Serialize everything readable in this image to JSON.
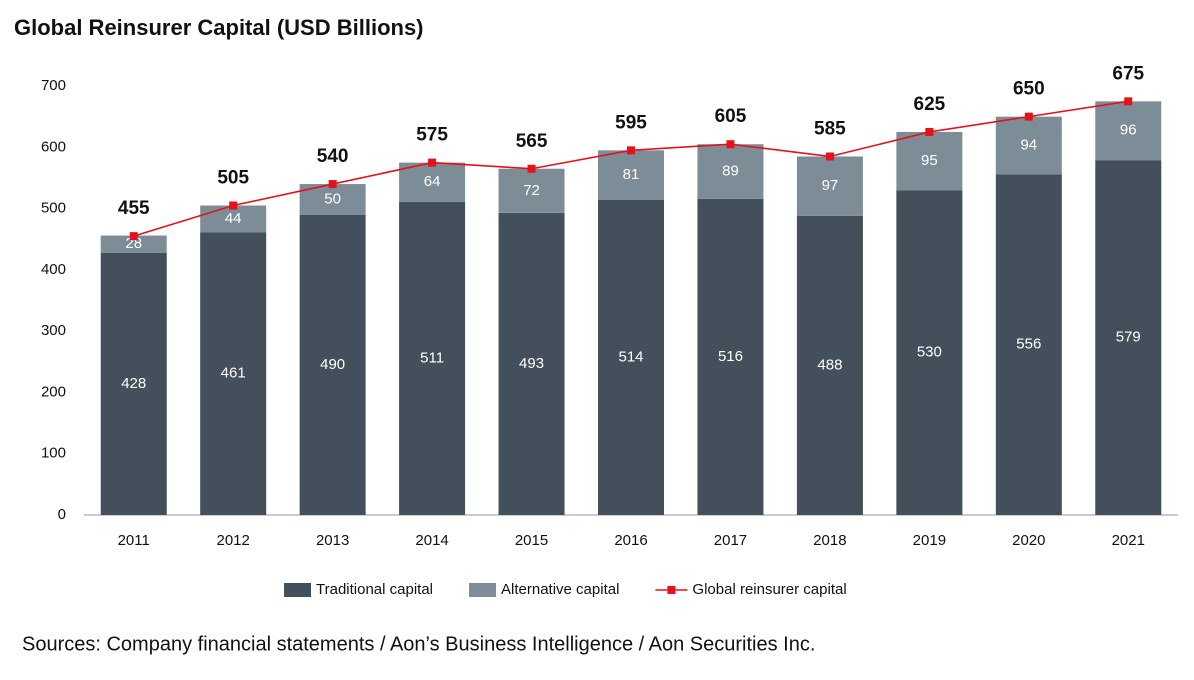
{
  "chart_data": {
    "type": "bar",
    "stacked": true,
    "title": "Global Reinsurer Capital (USD Billions)",
    "source": "Sources: Company financial statements / Aon’s Business Intelligence / Aon Securities Inc.",
    "categories": [
      "2011",
      "2012",
      "2013",
      "2014",
      "2015",
      "2016",
      "2017",
      "2018",
      "2019",
      "2020",
      "2021"
    ],
    "series": [
      {
        "name": "Traditional capital",
        "color": "#434f5b",
        "values": [
          428,
          461,
          490,
          511,
          493,
          514,
          516,
          488,
          530,
          556,
          579
        ]
      },
      {
        "name": "Alternative capital",
        "color": "#7d8d97",
        "values": [
          28,
          44,
          50,
          64,
          72,
          81,
          89,
          97,
          95,
          94,
          96
        ]
      },
      {
        "name": "Global reinsurer capital",
        "type": "line",
        "color": "#e3121b",
        "values": [
          455,
          505,
          540,
          575,
          565,
          595,
          605,
          585,
          625,
          650,
          675
        ]
      }
    ],
    "ylim": [
      0,
      700
    ],
    "yticks": [
      0,
      100,
      200,
      300,
      400,
      500,
      600,
      700
    ],
    "grid": false,
    "legend": "bottom"
  }
}
